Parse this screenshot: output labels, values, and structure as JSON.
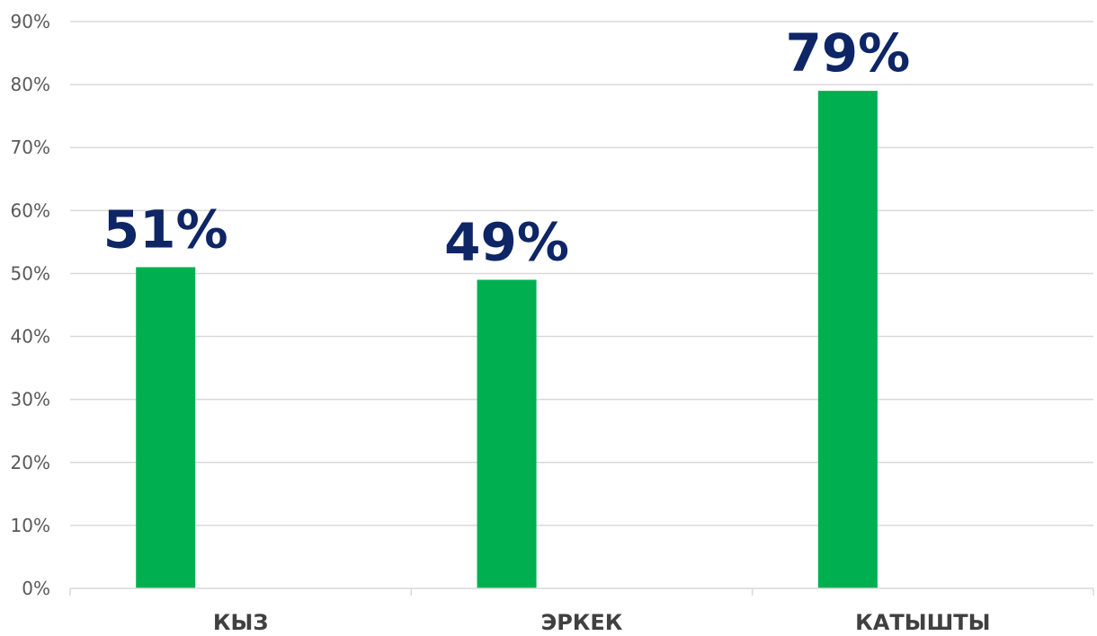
{
  "chart_data": {
    "type": "bar",
    "categories": [
      "КЫЗ",
      "ЭРКЕК",
      "КАТЫШТЫ"
    ],
    "values": [
      51,
      49,
      79
    ],
    "data_labels": [
      "51%",
      "49%",
      "79%"
    ],
    "ylim": [
      0,
      90
    ],
    "y_ticks": [
      "0%",
      "10%",
      "20%",
      "30%",
      "40%",
      "50%",
      "60%",
      "70%",
      "80%",
      "90%"
    ],
    "grid": true,
    "legend": "none",
    "colors": {
      "bar": "#00b050",
      "data_label": "#0e2566",
      "grid": "#d9d9d9"
    }
  }
}
